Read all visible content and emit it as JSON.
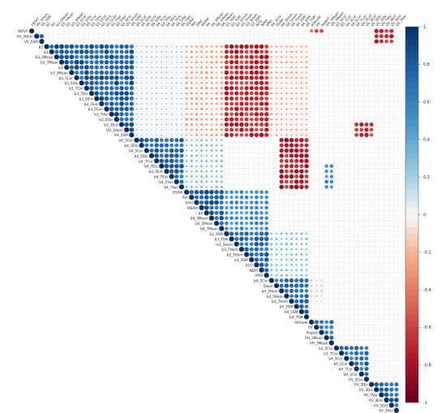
{
  "chart_data": {
    "type": "heatmap",
    "style": "upper-triangle correlation matrix, circle markers, diagonal labels",
    "variables": [
      "YBYVY",
      "VV_3Hom",
      "VV_5SM",
      "b2",
      "b3",
      "b3_5Mean",
      "b3_7Mean",
      "b3",
      "b3_3Mean",
      "b3_5Cor",
      "b3_5Dis",
      "b3_7Cor",
      "b3_7Dis",
      "b3_5Ent",
      "b3_7Ent",
      "b3_5Con",
      "b3_7Var",
      "b3_5Var",
      "b3_3Ent",
      "VH_3Hom",
      "VH_5SM",
      "b4_3Cor",
      "b4_3Dis",
      "b4_5Cor",
      "b4_5Dis",
      "b4_7Cor",
      "b4_7Dis",
      "b4_5Ent",
      "b4_7Ent",
      "b4_5Var",
      "b4_7Var",
      "OSAVI",
      "RVI",
      "SAVI",
      "MSAVI",
      "b4",
      "b4_3Mean",
      "b4_5Mean",
      "b4_7Mean",
      "b3_3SM",
      "b3_7SM",
      "b3_5Hom",
      "b3_7Hom",
      "b3_3Hom",
      "b3_3SM",
      "ACO",
      "NDVI",
      "ARVI",
      "b4_3Cor",
      "Slope",
      "b4_3Hom",
      "b4_5Hom",
      "b4_7Hom",
      "b4_3SM",
      "b4_5SM",
      "b4_7SM",
      "Altitude",
      "VV",
      "Aspect",
      "VH_3Mean",
      "VH_3Mean",
      "b3_5Cor",
      "b3_7Cor",
      "b4_3Cor",
      "b4_5Cor",
      "b4_7Cor",
      "VH_3Cor",
      "VV_3Cor",
      "VV_3Dis",
      "VV_3Dis",
      "VH_7Var",
      "VV_3Ent",
      "VV_3Ent",
      "VV_3Var"
    ],
    "col_labels": [
      "YBYVY",
      "VV_3Hom",
      "VV_5SM",
      "b2",
      "b3",
      "b3_5Mean",
      "b3_7Mean",
      "b3",
      "b3_3Mean",
      "b3_5Cor",
      "b3_5Dis",
      "b3_7Cor",
      "b3_7Dis",
      "b3_5Ent",
      "b3_7Ent",
      "b3_5Con",
      "b3_7Var",
      "b3_5Var",
      "b3_3Ent",
      "VH_3Hom",
      "VH_5SM",
      "b4_3Cor",
      "b4_3Dis",
      "b4_5Cor",
      "b4_5Dis",
      "b4_7Cor",
      "b4_7Dis",
      "b4_5Ent",
      "b4_7Ent",
      "b4_5Var",
      "b4_7Var",
      "OSAVI",
      "RVI",
      "SAVI",
      "MSAVI",
      "b4",
      "b4_3Mean",
      "b4_5Mean",
      "b4_7Mean",
      "b3_3SM",
      "b3_7SM",
      "b3_5Hom",
      "b3_7Hom",
      "b3_3Hom",
      "b3_3SM",
      "ACO",
      "NDVI",
      "ARVI",
      "b4_3Cor",
      "Slope",
      "b4_3Hom",
      "b4_5Hom",
      "b4_7Hom",
      "b4_3SM",
      "b4_5SM",
      "b4_7SM",
      "Altitude",
      "VV",
      "Aspect",
      "VH_3Mean",
      "VH_3Mean",
      "b3_5Cor",
      "b3_7Cor",
      "b4_3Cor",
      "b4_5Cor",
      "b4_7Cor",
      "VH_3Cor",
      "VV_3Cor",
      "VV_3Dis",
      "VV_3Dis",
      "VH_7Var",
      "VV_3Ent",
      "VV_3Ent",
      "VV_3Var"
    ],
    "blocks": [
      {
        "rows": [
          3,
          20
        ],
        "cols": [
          3,
          20
        ],
        "value": 0.9
      },
      {
        "rows": [
          21,
          30
        ],
        "cols": [
          21,
          30
        ],
        "value": 0.85
      },
      {
        "rows": [
          31,
          38
        ],
        "cols": [
          31,
          38
        ],
        "value": 0.9
      },
      {
        "rows": [
          39,
          47
        ],
        "cols": [
          39,
          47
        ],
        "value": 0.85
      },
      {
        "rows": [
          48,
          55
        ],
        "cols": [
          48,
          55
        ],
        "value": 0.8
      },
      {
        "rows": [
          56,
          60
        ],
        "cols": [
          56,
          60
        ],
        "value": 0.75
      },
      {
        "rows": [
          61,
          67
        ],
        "cols": [
          61,
          67
        ],
        "value": 0.8
      },
      {
        "rows": [
          68,
          73
        ],
        "cols": [
          68,
          73
        ],
        "value": 0.85
      },
      {
        "rows": [
          1,
          2
        ],
        "cols": [
          1,
          2
        ],
        "value": 0.9
      },
      {
        "rows": [
          3,
          20
        ],
        "cols": [
          31,
          38
        ],
        "value": -0.3
      },
      {
        "rows": [
          3,
          20
        ],
        "cols": [
          39,
          47
        ],
        "value": -0.8
      },
      {
        "rows": [
          3,
          20
        ],
        "cols": [
          48,
          55
        ],
        "value": -0.25
      },
      {
        "rows": [
          3,
          20
        ],
        "cols": [
          21,
          30
        ],
        "value": 0.2
      },
      {
        "rows": [
          21,
          30
        ],
        "cols": [
          31,
          38
        ],
        "value": 0.3
      },
      {
        "rows": [
          21,
          30
        ],
        "cols": [
          50,
          55
        ],
        "value": -0.85
      },
      {
        "rows": [
          31,
          38
        ],
        "cols": [
          39,
          47
        ],
        "value": 0.6
      },
      {
        "rows": [
          39,
          47
        ],
        "cols": [
          48,
          55
        ],
        "value": 0.3
      },
      {
        "rows": [
          18,
          20
        ],
        "cols": [
          65,
          68
        ],
        "value": -0.75
      },
      {
        "rows": [
          0,
          0
        ],
        "cols": [
          56,
          58
        ],
        "value": -0.6
      },
      {
        "rows": [
          0,
          2
        ],
        "cols": [
          69,
          72
        ],
        "value": -0.8
      },
      {
        "rows": [
          26,
          30
        ],
        "cols": [
          59,
          60
        ],
        "value": 0.6
      },
      {
        "rows": [
          48,
          52
        ],
        "cols": [
          56,
          58
        ],
        "value": -0.2
      }
    ],
    "colorbar": {
      "min": -1,
      "max": 1,
      "ticks": [
        "1",
        "0.8",
        "0.6",
        "0.4",
        "0.2",
        "0",
        "-0.2",
        "-0.4",
        "-0.6",
        "-0.8",
        "-1"
      ]
    },
    "colors": {
      "positive": "#053061",
      "mid": "#f7f7f7",
      "negative": "#67001f"
    }
  }
}
